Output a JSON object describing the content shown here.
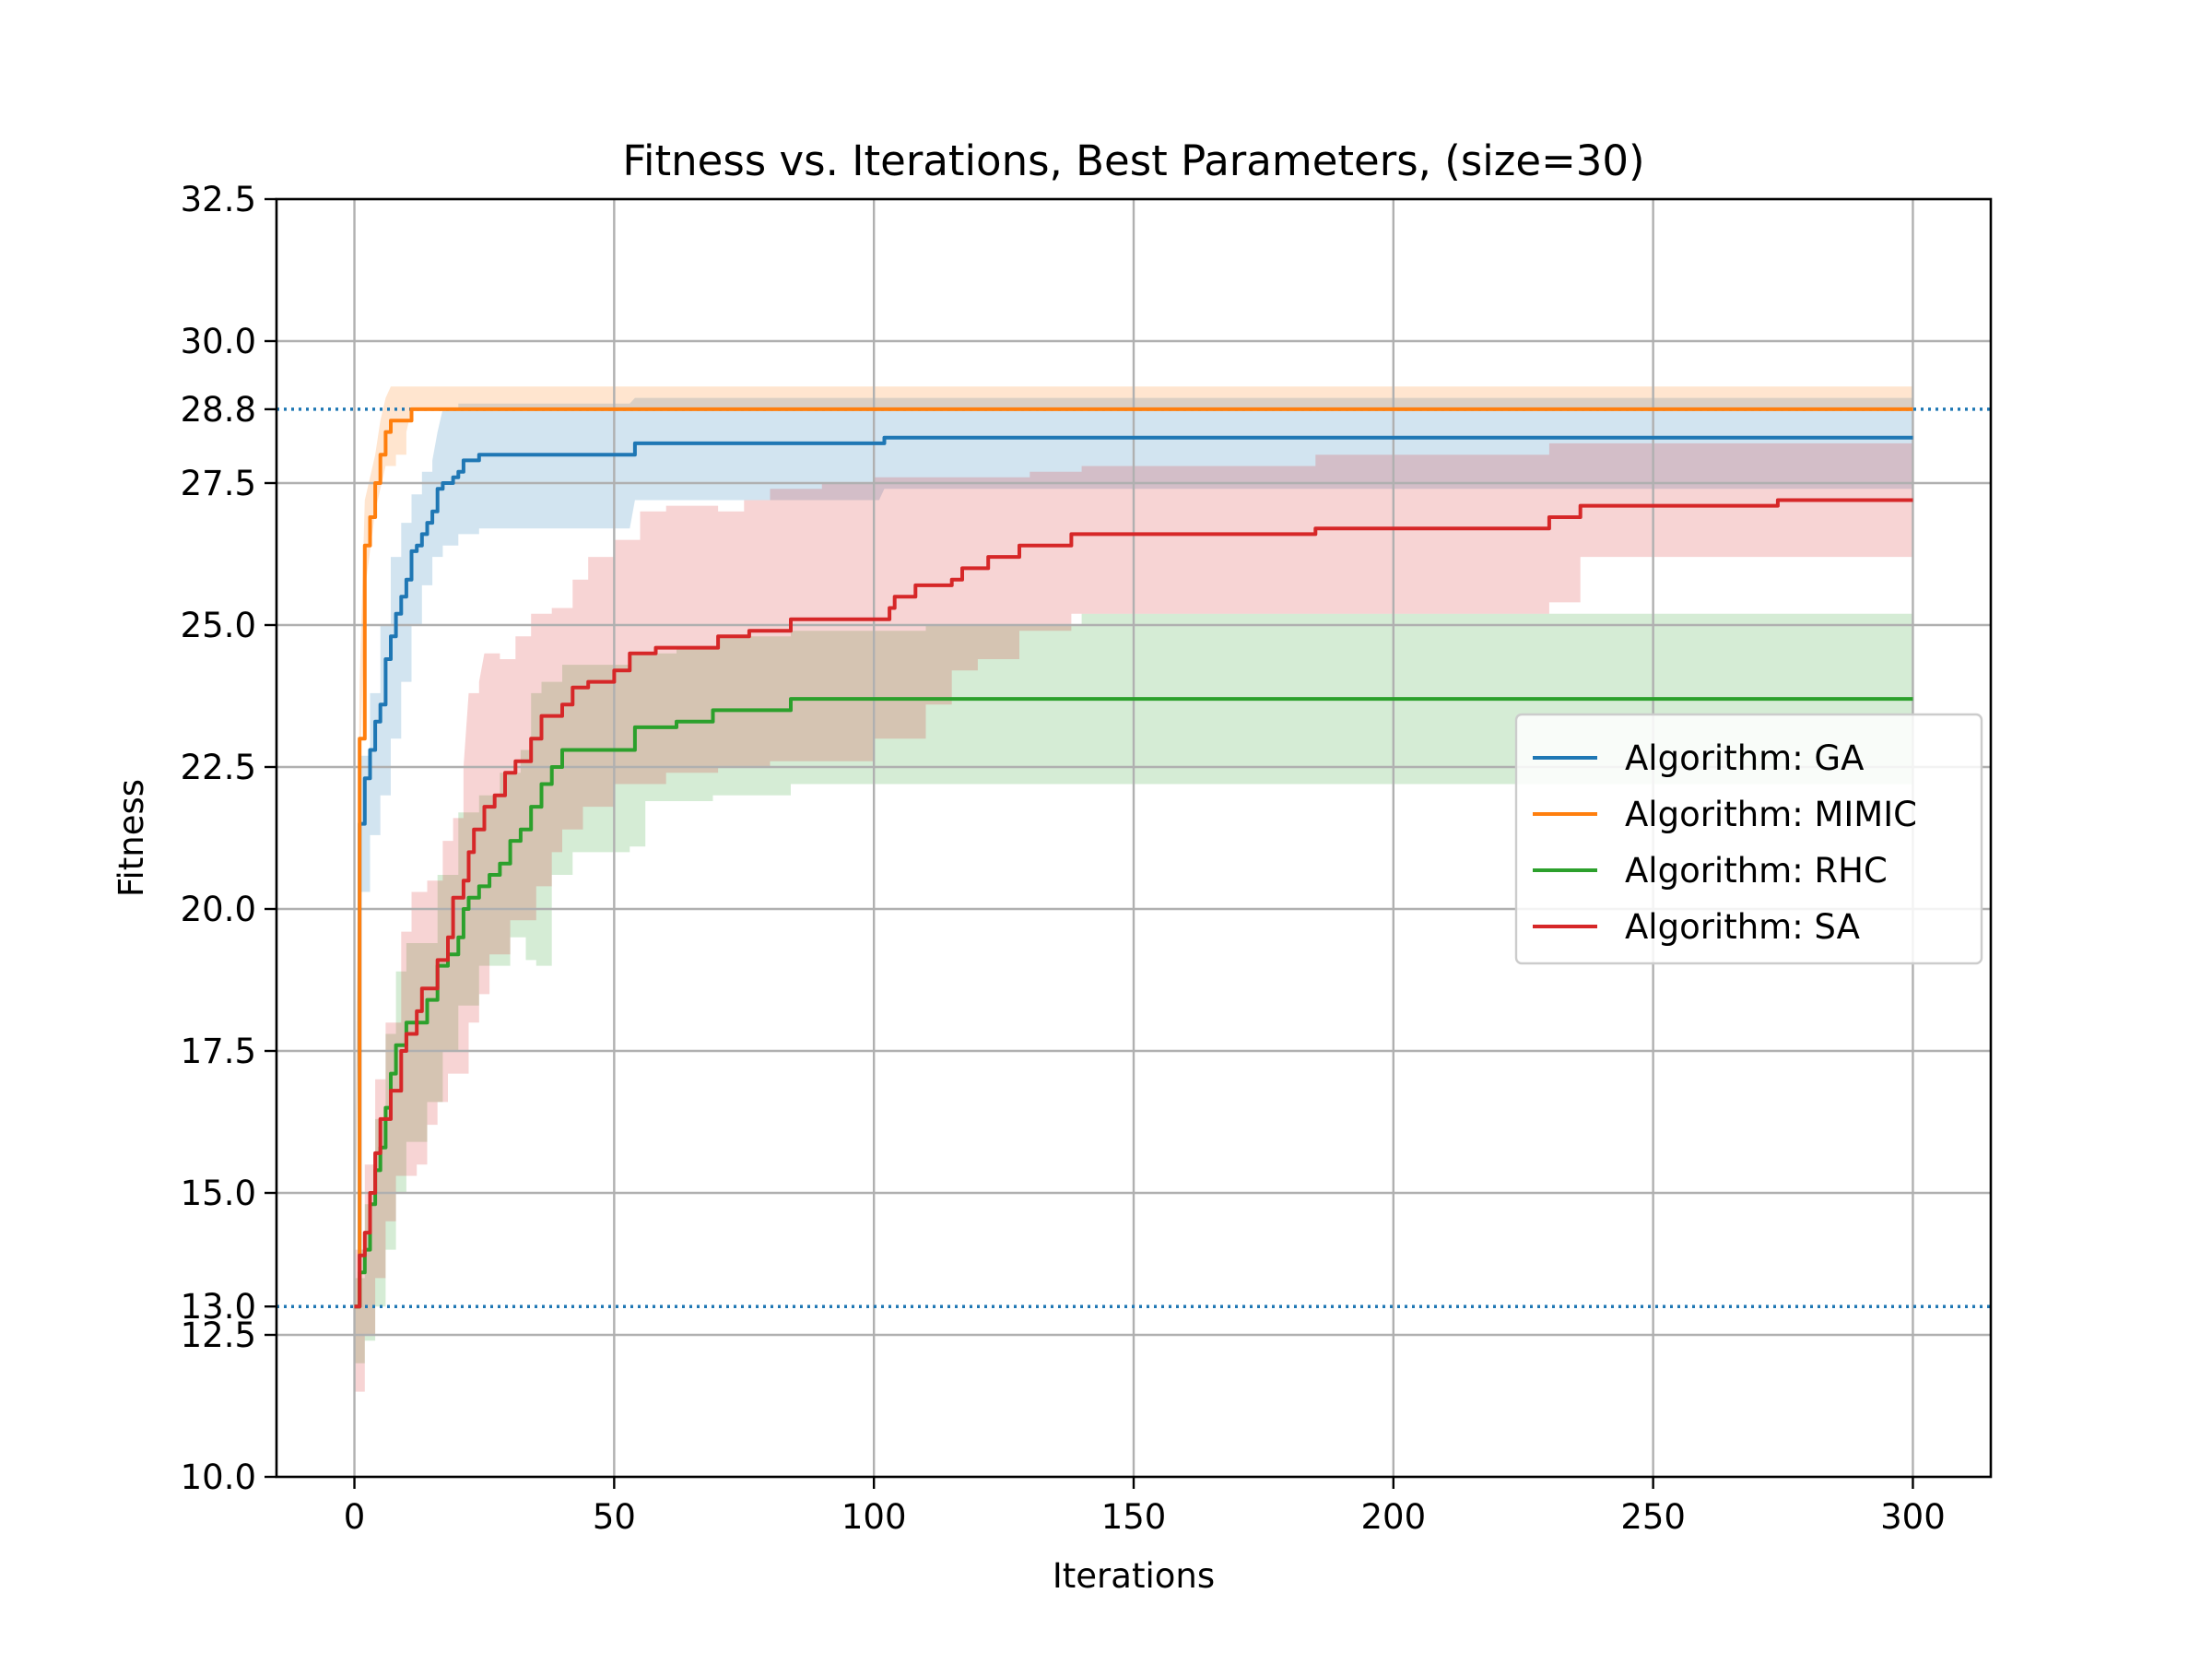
{
  "chart_data": {
    "type": "line",
    "title": "Fitness vs. Iterations, Best Parameters, (size=30)",
    "xlabel": "Iterations",
    "ylabel": "Fitness",
    "xlim": [
      -15,
      315
    ],
    "ylim": [
      10,
      32.5
    ],
    "x_ticks": [
      "0",
      "50",
      "100",
      "150",
      "200",
      "250",
      "300"
    ],
    "y_ticks": [
      "10.0",
      "12.5",
      "13.0",
      "15.0",
      "17.5",
      "20.0",
      "22.5",
      "25.0",
      "27.5",
      "28.8",
      "30.0",
      "32.5"
    ],
    "grid": true,
    "legend_position": "center-right",
    "reference_lines": [
      13.0,
      28.8
    ],
    "reference_line_color": "#1f77b4",
    "series": [
      {
        "name": "Algorithm: GA",
        "color": "#1f77b4",
        "mean": [
          [
            0,
            13.0
          ],
          [
            1,
            21.5
          ],
          [
            2,
            22.3
          ],
          [
            3,
            22.8
          ],
          [
            4,
            23.3
          ],
          [
            5,
            23.6
          ],
          [
            6,
            24.4
          ],
          [
            7,
            24.8
          ],
          [
            8,
            25.2
          ],
          [
            9,
            25.5
          ],
          [
            10,
            25.8
          ],
          [
            11,
            26.3
          ],
          [
            12,
            26.4
          ],
          [
            13,
            26.6
          ],
          [
            14,
            26.8
          ],
          [
            15,
            27.0
          ],
          [
            16,
            27.4
          ],
          [
            17,
            27.5
          ],
          [
            19,
            27.6
          ],
          [
            20,
            27.7
          ],
          [
            21,
            27.9
          ],
          [
            24,
            28.0
          ],
          [
            53,
            28.0
          ],
          [
            54,
            28.2
          ],
          [
            101,
            28.2
          ],
          [
            102,
            28.3
          ],
          [
            300,
            28.3
          ]
        ],
        "lower": [
          [
            0,
            12.5
          ],
          [
            1,
            20.3
          ],
          [
            3,
            21.3
          ],
          [
            5,
            22.0
          ],
          [
            7,
            23.0
          ],
          [
            9,
            24.0
          ],
          [
            11,
            25.0
          ],
          [
            13,
            25.7
          ],
          [
            15,
            26.2
          ],
          [
            17,
            26.4
          ],
          [
            20,
            26.6
          ],
          [
            24,
            26.7
          ],
          [
            53,
            26.7
          ],
          [
            54,
            27.2
          ],
          [
            101,
            27.2
          ],
          [
            102,
            27.4
          ],
          [
            300,
            27.4
          ]
        ],
        "upper": [
          [
            0,
            13.5
          ],
          [
            1,
            22.7
          ],
          [
            3,
            23.8
          ],
          [
            5,
            25.0
          ],
          [
            7,
            26.2
          ],
          [
            9,
            26.8
          ],
          [
            11,
            27.3
          ],
          [
            13,
            27.7
          ],
          [
            15,
            27.9
          ],
          [
            16,
            28.4
          ],
          [
            17,
            28.8
          ],
          [
            20,
            28.9
          ],
          [
            53,
            28.9
          ],
          [
            54,
            29.0
          ],
          [
            300,
            29.0
          ]
        ]
      },
      {
        "name": "Algorithm: MIMIC",
        "color": "#ff7f0e",
        "mean": [
          [
            0,
            13.0
          ],
          [
            1,
            23.0
          ],
          [
            2,
            26.4
          ],
          [
            3,
            26.9
          ],
          [
            4,
            27.5
          ],
          [
            5,
            28.0
          ],
          [
            6,
            28.4
          ],
          [
            7,
            28.6
          ],
          [
            10,
            28.6
          ],
          [
            11,
            28.8
          ],
          [
            300,
            28.8
          ]
        ],
        "lower": [
          [
            0,
            12.0
          ],
          [
            1,
            22.0
          ],
          [
            2,
            25.6
          ],
          [
            3,
            26.3
          ],
          [
            4,
            27.0
          ],
          [
            5,
            27.4
          ],
          [
            6,
            27.8
          ],
          [
            8,
            28.0
          ],
          [
            10,
            28.4
          ],
          [
            11,
            28.8
          ],
          [
            300,
            28.8
          ]
        ],
        "upper": [
          [
            0,
            14.0
          ],
          [
            1,
            24.0
          ],
          [
            2,
            27.2
          ],
          [
            3,
            27.6
          ],
          [
            4,
            28.0
          ],
          [
            5,
            28.6
          ],
          [
            6,
            29.0
          ],
          [
            7,
            29.2
          ],
          [
            300,
            29.2
          ]
        ]
      },
      {
        "name": "Algorithm: RHC",
        "color": "#2ca02c",
        "mean": [
          [
            0,
            13.0
          ],
          [
            1,
            13.6
          ],
          [
            2,
            14.0
          ],
          [
            3,
            14.8
          ],
          [
            4,
            15.4
          ],
          [
            5,
            15.8
          ],
          [
            6,
            16.5
          ],
          [
            7,
            17.1
          ],
          [
            8,
            17.6
          ],
          [
            10,
            18.0
          ],
          [
            14,
            18.4
          ],
          [
            16,
            19.0
          ],
          [
            18,
            19.2
          ],
          [
            20,
            19.5
          ],
          [
            21,
            20.0
          ],
          [
            22,
            20.2
          ],
          [
            24,
            20.4
          ],
          [
            26,
            20.6
          ],
          [
            28,
            20.8
          ],
          [
            30,
            21.2
          ],
          [
            32,
            21.4
          ],
          [
            34,
            21.8
          ],
          [
            36,
            22.2
          ],
          [
            38,
            22.5
          ],
          [
            40,
            22.8
          ],
          [
            53,
            22.8
          ],
          [
            54,
            23.2
          ],
          [
            62,
            23.3
          ],
          [
            69,
            23.5
          ],
          [
            84,
            23.7
          ],
          [
            300,
            23.7
          ]
        ],
        "lower": [
          [
            0,
            12.0
          ],
          [
            2,
            12.4
          ],
          [
            4,
            13.0
          ],
          [
            6,
            14.0
          ],
          [
            8,
            15.0
          ],
          [
            10,
            15.9
          ],
          [
            14,
            16.6
          ],
          [
            17,
            17.5
          ],
          [
            20,
            18.3
          ],
          [
            24,
            19.0
          ],
          [
            30,
            19.5
          ],
          [
            33,
            19.1
          ],
          [
            35,
            19.0
          ],
          [
            38,
            20.6
          ],
          [
            42,
            21.0
          ],
          [
            53,
            21.1
          ],
          [
            56,
            21.9
          ],
          [
            69,
            22.0
          ],
          [
            84,
            22.2
          ],
          [
            300,
            22.2
          ]
        ],
        "upper": [
          [
            0,
            13.5
          ],
          [
            2,
            14.8
          ],
          [
            4,
            16.3
          ],
          [
            6,
            17.8
          ],
          [
            8,
            18.9
          ],
          [
            10,
            19.4
          ],
          [
            14,
            19.4
          ],
          [
            16,
            20.6
          ],
          [
            20,
            21.7
          ],
          [
            24,
            22.0
          ],
          [
            28,
            22.4
          ],
          [
            32,
            22.8
          ],
          [
            34,
            23.8
          ],
          [
            36,
            24.0
          ],
          [
            40,
            24.3
          ],
          [
            53,
            24.5
          ],
          [
            62,
            24.6
          ],
          [
            70,
            24.8
          ],
          [
            84,
            24.9
          ],
          [
            110,
            25.0
          ],
          [
            140,
            25.2
          ],
          [
            300,
            25.2
          ]
        ]
      },
      {
        "name": "Algorithm: SA",
        "color": "#d62728",
        "mean": [
          [
            0,
            13.0
          ],
          [
            1,
            13.9
          ],
          [
            2,
            14.3
          ],
          [
            3,
            15.0
          ],
          [
            4,
            15.7
          ],
          [
            5,
            16.3
          ],
          [
            7,
            16.8
          ],
          [
            9,
            17.5
          ],
          [
            10,
            17.8
          ],
          [
            12,
            18.2
          ],
          [
            13,
            18.6
          ],
          [
            16,
            19.1
          ],
          [
            18,
            19.5
          ],
          [
            19,
            20.2
          ],
          [
            21,
            20.5
          ],
          [
            22,
            21.0
          ],
          [
            23,
            21.4
          ],
          [
            25,
            21.8
          ],
          [
            27,
            22.0
          ],
          [
            29,
            22.4
          ],
          [
            31,
            22.6
          ],
          [
            34,
            23.0
          ],
          [
            36,
            23.4
          ],
          [
            40,
            23.6
          ],
          [
            42,
            23.9
          ],
          [
            45,
            24.0
          ],
          [
            50,
            24.2
          ],
          [
            53,
            24.5
          ],
          [
            58,
            24.6
          ],
          [
            70,
            24.8
          ],
          [
            76,
            24.9
          ],
          [
            84,
            25.1
          ],
          [
            103,
            25.3
          ],
          [
            104,
            25.5
          ],
          [
            108,
            25.7
          ],
          [
            115,
            25.8
          ],
          [
            117,
            26.0
          ],
          [
            122,
            26.2
          ],
          [
            128,
            26.4
          ],
          [
            138,
            26.6
          ],
          [
            185,
            26.7
          ],
          [
            230,
            26.9
          ],
          [
            236,
            27.1
          ],
          [
            274,
            27.2
          ],
          [
            300,
            27.2
          ]
        ],
        "lower": [
          [
            0,
            11.5
          ],
          [
            2,
            12.5
          ],
          [
            4,
            13.5
          ],
          [
            6,
            14.5
          ],
          [
            8,
            15.3
          ],
          [
            12,
            15.5
          ],
          [
            14,
            16.2
          ],
          [
            16,
            16.6
          ],
          [
            18,
            17.1
          ],
          [
            22,
            18.0
          ],
          [
            24,
            18.5
          ],
          [
            26,
            19.2
          ],
          [
            30,
            19.8
          ],
          [
            35,
            20.4
          ],
          [
            38,
            21.0
          ],
          [
            40,
            21.4
          ],
          [
            44,
            21.8
          ],
          [
            50,
            22.2
          ],
          [
            60,
            22.4
          ],
          [
            70,
            22.5
          ],
          [
            80,
            22.6
          ],
          [
            100,
            23.0
          ],
          [
            110,
            23.6
          ],
          [
            115,
            24.2
          ],
          [
            120,
            24.4
          ],
          [
            128,
            24.9
          ],
          [
            138,
            25.2
          ],
          [
            150,
            25.2
          ],
          [
            185,
            25.2
          ],
          [
            220,
            25.2
          ],
          [
            230,
            25.4
          ],
          [
            236,
            26.2
          ],
          [
            300,
            26.2
          ]
        ],
        "upper": [
          [
            0,
            14.0
          ],
          [
            2,
            15.5
          ],
          [
            4,
            17.0
          ],
          [
            6,
            18.0
          ],
          [
            9,
            19.6
          ],
          [
            11,
            20.3
          ],
          [
            14,
            20.5
          ],
          [
            17,
            21.2
          ],
          [
            19,
            21.6
          ],
          [
            21,
            22.5
          ],
          [
            22,
            23.8
          ],
          [
            24,
            24.0
          ],
          [
            25,
            24.5
          ],
          [
            28,
            24.4
          ],
          [
            31,
            24.8
          ],
          [
            34,
            25.2
          ],
          [
            38,
            25.3
          ],
          [
            42,
            25.8
          ],
          [
            45,
            26.2
          ],
          [
            50,
            26.5
          ],
          [
            55,
            27.0
          ],
          [
            60,
            27.1
          ],
          [
            70,
            27.0
          ],
          [
            75,
            27.2
          ],
          [
            80,
            27.4
          ],
          [
            90,
            27.5
          ],
          [
            100,
            27.6
          ],
          [
            110,
            27.6
          ],
          [
            130,
            27.7
          ],
          [
            140,
            27.8
          ],
          [
            160,
            27.8
          ],
          [
            185,
            28.0
          ],
          [
            230,
            28.2
          ],
          [
            300,
            28.3
          ]
        ]
      }
    ]
  }
}
